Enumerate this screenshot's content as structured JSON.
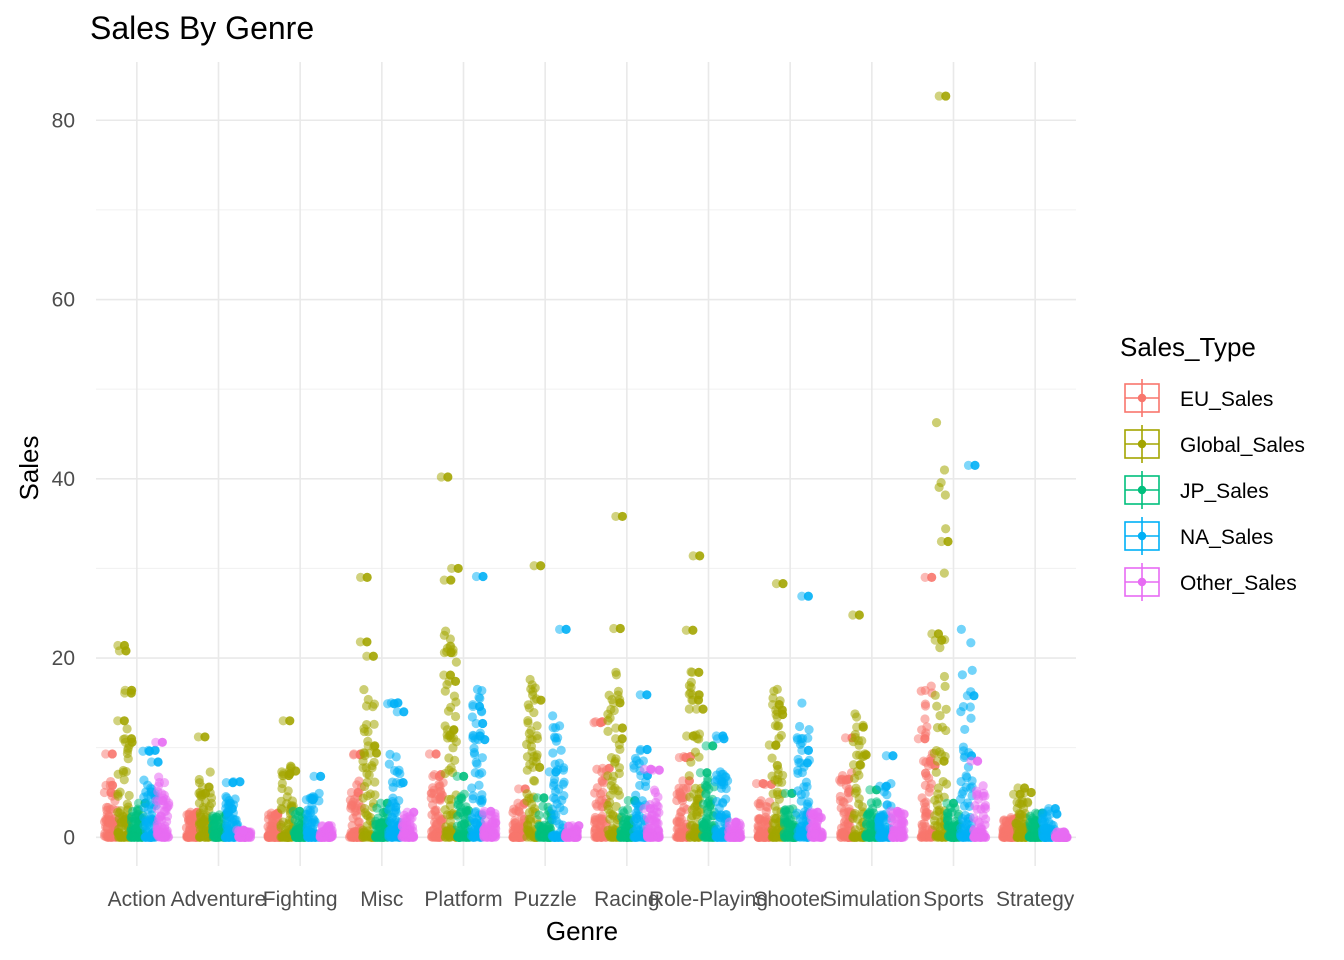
{
  "chart_data": {
    "type": "scatter",
    "title": "Sales By Genre",
    "xlabel": "Genre",
    "ylabel": "Sales",
    "ylim": [
      -3.2,
      86.5
    ],
    "y_ticks": [
      0,
      20,
      40,
      60,
      80
    ],
    "grid": true,
    "legend_title": "Sales_Type",
    "legend_position": "right",
    "categories": [
      "Action",
      "Adventure",
      "Fighting",
      "Misc",
      "Platform",
      "Puzzle",
      "Racing",
      "Role-Playing",
      "Shooter",
      "Simulation",
      "Sports",
      "Strategy"
    ],
    "series": [
      {
        "name": "EU_Sales",
        "color": "#F8766D",
        "max": [
          9.3,
          2.8,
          2.7,
          9.3,
          9.3,
          5.4,
          12.9,
          9.0,
          6.0,
          11.1,
          29.0,
          2.2
        ],
        "highlights": [
          [
            9.3,
            5.8,
            5.0
          ],
          [
            2.8,
            2.5
          ],
          [
            2.7,
            2.5
          ],
          [
            9.3,
            9.2,
            5.0
          ],
          [
            9.3,
            7.0,
            6.8
          ],
          [
            5.4,
            3.8
          ],
          [
            12.9,
            12.8,
            7.7
          ],
          [
            9.0,
            8.9,
            6.3
          ],
          [
            6.0,
            5.9
          ],
          [
            11.1,
            6.5,
            6.4
          ],
          [
            29.0,
            11.0,
            8.5,
            8.0
          ],
          [
            2.2,
            1.8
          ]
        ]
      },
      {
        "name": "Global_Sales",
        "color": "#A3A500",
        "max": [
          21.4,
          11.2,
          13.0,
          29.0,
          40.2,
          30.3,
          35.8,
          31.4,
          28.3,
          24.8,
          82.7,
          5.5
        ],
        "highlights": [
          [
            21.4,
            20.8,
            16.4,
            16.1,
            13.0,
            11.0,
            10.6
          ],
          [
            11.2,
            5.6,
            4.9
          ],
          [
            13.0,
            7.4,
            7.1,
            6.9
          ],
          [
            29.0,
            21.8,
            20.2,
            10.2,
            9.4
          ],
          [
            40.2,
            30.0,
            28.7,
            20.6,
            18.1,
            17.4,
            12.0
          ],
          [
            30.3,
            15.3,
            7.8
          ],
          [
            35.8,
            23.3,
            15.0,
            12.2,
            11.0
          ],
          [
            31.4,
            23.1,
            18.4,
            15.9,
            15.3,
            14.3,
            11.3
          ],
          [
            28.3,
            14.8,
            14.2,
            13.7,
            10.3
          ],
          [
            24.8,
            12.3,
            9.2,
            8.1
          ],
          [
            82.7,
            33.0,
            22.7,
            22.0,
            8.5
          ],
          [
            5.5,
            5.0,
            4.8
          ]
        ]
      },
      {
        "name": "JP_Sales",
        "color": "#00BF7D",
        "max": [
          3.8,
          2.5,
          2.9,
          3.8,
          6.8,
          4.4,
          4.1,
          10.2,
          4.9,
          5.3,
          3.8,
          2.7
        ],
        "highlights": [
          [
            3.8
          ],
          [
            2.5
          ],
          [
            2.9
          ],
          [
            3.8
          ],
          [
            6.8
          ],
          [
            4.4
          ],
          [
            4.1
          ],
          [
            10.2,
            7.2
          ],
          [
            4.9
          ],
          [
            5.3
          ],
          [
            3.8
          ],
          [
            2.7
          ]
        ]
      },
      {
        "name": "NA_Sales",
        "color": "#00B0F6",
        "max": [
          9.7,
          6.2,
          6.8,
          15.0,
          29.1,
          23.2,
          15.9,
          11.3,
          26.9,
          9.1,
          41.5,
          3.2
        ],
        "highlights": [
          [
            9.7,
            9.6,
            8.4
          ],
          [
            6.2,
            6.1,
            3.2
          ],
          [
            6.8,
            4.2
          ],
          [
            15.0,
            14.9,
            14.0,
            6.1
          ],
          [
            29.1,
            14.6,
            12.7,
            11.3,
            10.9
          ],
          [
            23.2,
            7.3
          ],
          [
            15.9,
            9.8,
            6.9
          ],
          [
            11.3,
            11.0,
            6.2
          ],
          [
            26.9,
            9.7,
            8.3
          ],
          [
            9.1,
            5.7
          ],
          [
            41.5,
            15.8,
            9.1
          ],
          [
            3.2,
            2.6
          ]
        ]
      },
      {
        "name": "Other_Sales",
        "color": "#E76BF3",
        "max": [
          10.6,
          0.8,
          1.3,
          2.8,
          2.9,
          1.3,
          7.6,
          1.7,
          2.8,
          2.9,
          8.5,
          0.6
        ],
        "highlights": [
          [
            10.6,
            4.1
          ],
          [
            0.8
          ],
          [
            1.3
          ],
          [
            2.8
          ],
          [
            2.9
          ],
          [
            1.3
          ],
          [
            7.6,
            7.5,
            3.2
          ],
          [
            1.7
          ],
          [
            2.8
          ],
          [
            2.9
          ],
          [
            8.5
          ],
          [
            0.6
          ]
        ]
      }
    ]
  }
}
